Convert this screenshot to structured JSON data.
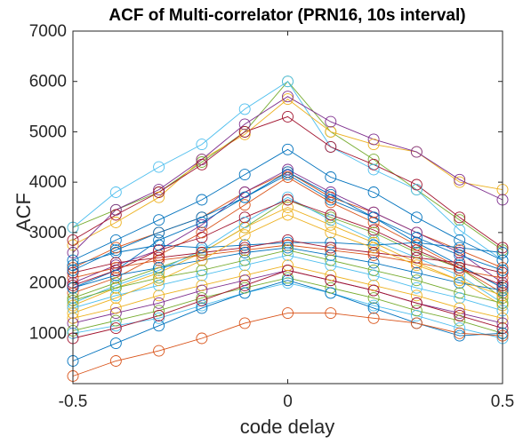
{
  "chart_data": {
    "type": "line",
    "title": "ACF of Multi-correlator (PRN16, 10s interval)",
    "xlabel": "code delay",
    "ylabel": "ACF",
    "xlim": [
      -0.5,
      0.5
    ],
    "ylim": [
      0,
      7000
    ],
    "x_ticks": [
      -0.5,
      0,
      0.5
    ],
    "x_tick_labels": [
      "-0.5",
      "0",
      "0.5"
    ],
    "y_ticks": [
      1000,
      2000,
      3000,
      4000,
      5000,
      6000,
      7000
    ],
    "y_tick_labels": [
      "1000",
      "2000",
      "3000",
      "4000",
      "5000",
      "6000",
      "7000"
    ],
    "grid": false,
    "legend": "none",
    "marker": "open-circle",
    "x": [
      -0.5,
      -0.4,
      -0.3,
      -0.2,
      -0.1,
      0,
      0.1,
      0.2,
      0.3,
      0.4,
      0.5
    ],
    "series": [
      {
        "color": "#77AC30",
        "values": [
          3100,
          3450,
          3800,
          4400,
          5000,
          6000,
          5000,
          4450,
          3850,
          3250,
          2650
        ]
      },
      {
        "color": "#4DBEEE",
        "values": [
          3100,
          3800,
          4300,
          4750,
          5450,
          6000,
          4700,
          4250,
          3850,
          3050,
          2450
        ]
      },
      {
        "color": "#EDB120",
        "values": [
          2750,
          3200,
          3700,
          4450,
          4950,
          5650,
          5000,
          4750,
          4600,
          4000,
          3850
        ]
      },
      {
        "color": "#7E2F8E",
        "values": [
          2600,
          3450,
          3850,
          4450,
          5150,
          5700,
          5200,
          4850,
          4600,
          4050,
          3650
        ]
      },
      {
        "color": "#A2142F",
        "values": [
          2850,
          3350,
          3800,
          4350,
          5000,
          5300,
          4700,
          4350,
          3950,
          3300,
          2700
        ]
      },
      {
        "color": "#0072BD",
        "values": [
          2450,
          2850,
          3250,
          3650,
          4150,
          4650,
          4100,
          3800,
          3300,
          2850,
          2450
        ]
      },
      {
        "color": "#D95319",
        "values": [
          2300,
          2700,
          3000,
          3300,
          3800,
          4200,
          3700,
          3400,
          3000,
          2650,
          2300
        ]
      },
      {
        "color": "#7E2F8E",
        "values": [
          2000,
          2350,
          2650,
          3150,
          3800,
          4250,
          3800,
          3400,
          3000,
          2600,
          2000
        ]
      },
      {
        "color": "#0072BD",
        "values": [
          1900,
          2250,
          2850,
          3200,
          3700,
          4200,
          3750,
          3300,
          2800,
          2350,
          1900
        ]
      },
      {
        "color": "#D95319",
        "values": [
          1800,
          2100,
          2550,
          3000,
          3550,
          4100,
          3600,
          3200,
          2750,
          2300,
          1800
        ]
      },
      {
        "color": "#77AC30",
        "values": [
          1700,
          2000,
          2300,
          2600,
          3100,
          3650,
          3300,
          3000,
          2600,
          2300,
          1700
        ]
      },
      {
        "color": "#4DBEEE",
        "values": [
          1600,
          1950,
          2250,
          2650,
          3200,
          3700,
          3250,
          2850,
          2500,
          2150,
          1600
        ]
      },
      {
        "color": "#EDB120",
        "values": [
          1550,
          1900,
          2200,
          2600,
          3100,
          3500,
          3150,
          2800,
          2400,
          2050,
          1550
        ]
      },
      {
        "color": "#0072BD",
        "values": [
          2350,
          2600,
          2750,
          2700,
          2750,
          2800,
          2800,
          2750,
          2800,
          2700,
          2600
        ]
      },
      {
        "color": "#A2142F",
        "values": [
          2200,
          2400,
          2500,
          2600,
          2700,
          2850,
          2700,
          2600,
          2500,
          2400,
          2200
        ]
      },
      {
        "color": "#D95319",
        "values": [
          2100,
          2300,
          2450,
          2550,
          2650,
          2750,
          2650,
          2550,
          2400,
          2250,
          2100
        ]
      },
      {
        "color": "#0072BD",
        "values": [
          1900,
          2150,
          2300,
          2450,
          2600,
          2700,
          2550,
          2400,
          2200,
          2000,
          1850
        ]
      },
      {
        "color": "#77AC30",
        "values": [
          1650,
          1900,
          2100,
          2250,
          2450,
          2650,
          2450,
          2250,
          2050,
          1800,
          1600
        ]
      },
      {
        "color": "#4DBEEE",
        "values": [
          1500,
          1750,
          1950,
          2150,
          2350,
          2550,
          2350,
          2150,
          1900,
          1700,
          1450
        ]
      },
      {
        "color": "#EDB120",
        "values": [
          1300,
          1500,
          1750,
          1950,
          2150,
          2350,
          2150,
          1950,
          1750,
          1500,
          1300
        ]
      },
      {
        "color": "#7E2F8E",
        "values": [
          1200,
          1400,
          1600,
          1850,
          2050,
          2250,
          2050,
          1850,
          1600,
          1400,
          1200
        ]
      },
      {
        "color": "#77AC30",
        "values": [
          1050,
          1250,
          1450,
          1700,
          1900,
          2100,
          1900,
          1700,
          1450,
          1250,
          1000
        ]
      },
      {
        "color": "#4DBEEE",
        "values": [
          1000,
          1150,
          1300,
          1550,
          1800,
          2000,
          1800,
          1550,
          1350,
          1100,
          900
        ]
      },
      {
        "color": "#0072BD",
        "values": [
          450,
          800,
          1150,
          1500,
          1800,
          2050,
          1800,
          1500,
          1200,
          950,
          1000
        ]
      },
      {
        "color": "#D95319",
        "values": [
          150,
          450,
          650,
          900,
          1200,
          1400,
          1400,
          1300,
          1200,
          1000,
          950
        ]
      },
      {
        "color": "#A2142F",
        "values": [
          900,
          1100,
          1350,
          1650,
          1950,
          2250,
          2050,
          1850,
          1600,
          1350,
          1100
        ]
      },
      {
        "color": "#EDB120",
        "values": [
          1400,
          1700,
          2050,
          2450,
          2950,
          3350,
          3000,
          2700,
          2350,
          2050,
          1750
        ]
      },
      {
        "color": "#0072BD",
        "values": [
          2250,
          2650,
          3000,
          3300,
          3700,
          4150,
          3650,
          3300,
          2900,
          2550,
          2250
        ]
      },
      {
        "color": "#A2142F",
        "values": [
          1950,
          2250,
          2650,
          2900,
          3300,
          3650,
          3350,
          3050,
          2650,
          2300,
          1950
        ]
      }
    ]
  }
}
